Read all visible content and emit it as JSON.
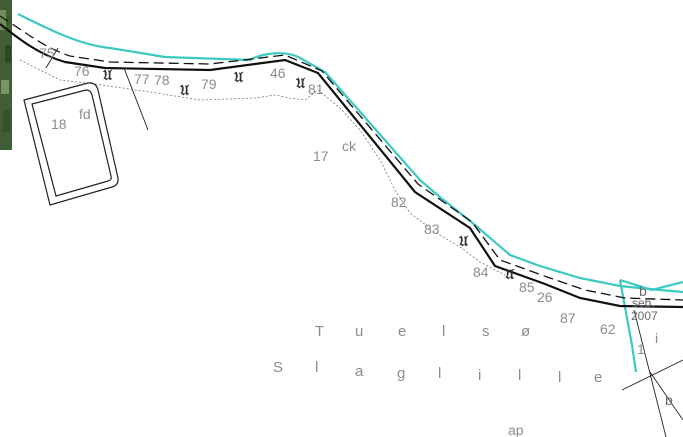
{
  "map": {
    "parcel_numbers": [
      "75",
      "76",
      "77",
      "78",
      "79",
      "46",
      "81",
      "18",
      "17",
      "82",
      "83",
      "84",
      "85",
      "26",
      "87",
      "62",
      "1"
    ],
    "parcel_letters": [
      "fd",
      "ck",
      "b",
      "b",
      "ap",
      "i"
    ],
    "notes": [
      "seb.",
      "2007"
    ],
    "place_name_1": [
      "T",
      "u",
      "e",
      "l",
      "s",
      "ø"
    ],
    "place_name_2": [
      "S",
      "l",
      "a",
      "g",
      "l",
      "i",
      "l",
      "l",
      "e"
    ],
    "colors": {
      "coastline": "#3cc9c0",
      "boundary": "#111111",
      "aerial_strip": "#3f5e35",
      "labels": "#8c8c8c"
    },
    "symbol_name": "curved-symbol-icon"
  }
}
